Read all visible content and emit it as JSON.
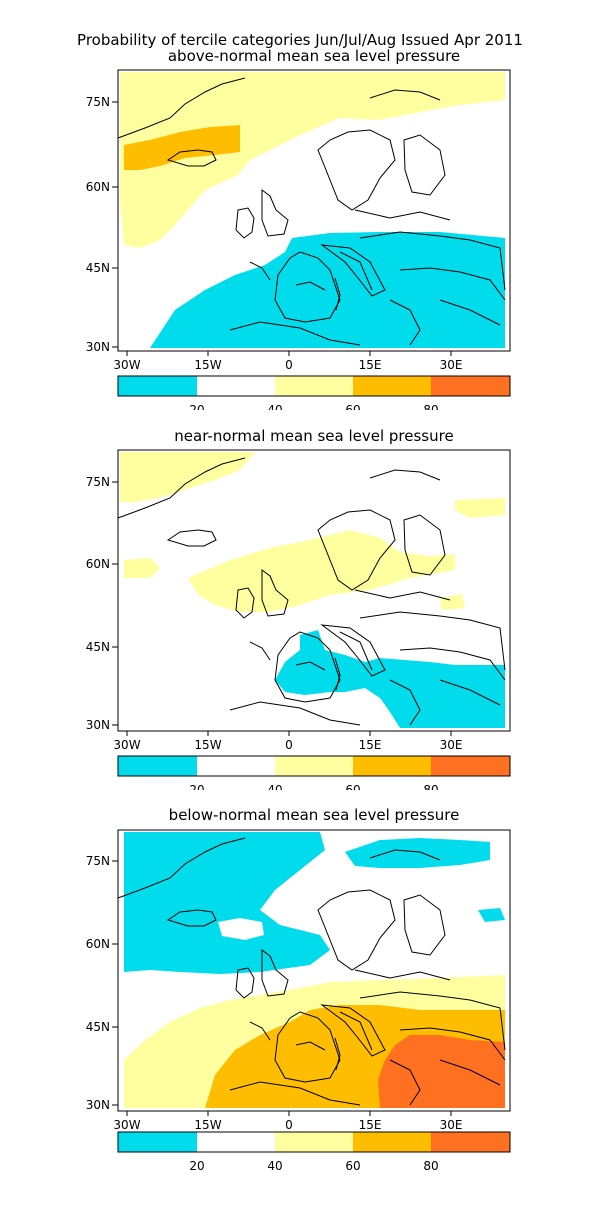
{
  "title_line1": "Probability of tercile categories Jun/Jul/Aug Issued Apr 2011",
  "panels": [
    {
      "subtitle": "above-normal mean sea level pressure"
    },
    {
      "subtitle": "near-normal mean sea level pressure"
    },
    {
      "subtitle": "below-normal mean sea level pressure"
    }
  ],
  "lat_labels": [
    "75N",
    "60N",
    "45N",
    "30N"
  ],
  "lon_labels": [
    "30W",
    "15W",
    "0",
    "15E",
    "30E"
  ],
  "colorbar": {
    "labels": [
      "20",
      "40",
      "60",
      "80"
    ],
    "colors": [
      "#00dcec",
      "#ffffff",
      "#ffff9f",
      "#ffbd00",
      "#ff7020"
    ]
  }
}
